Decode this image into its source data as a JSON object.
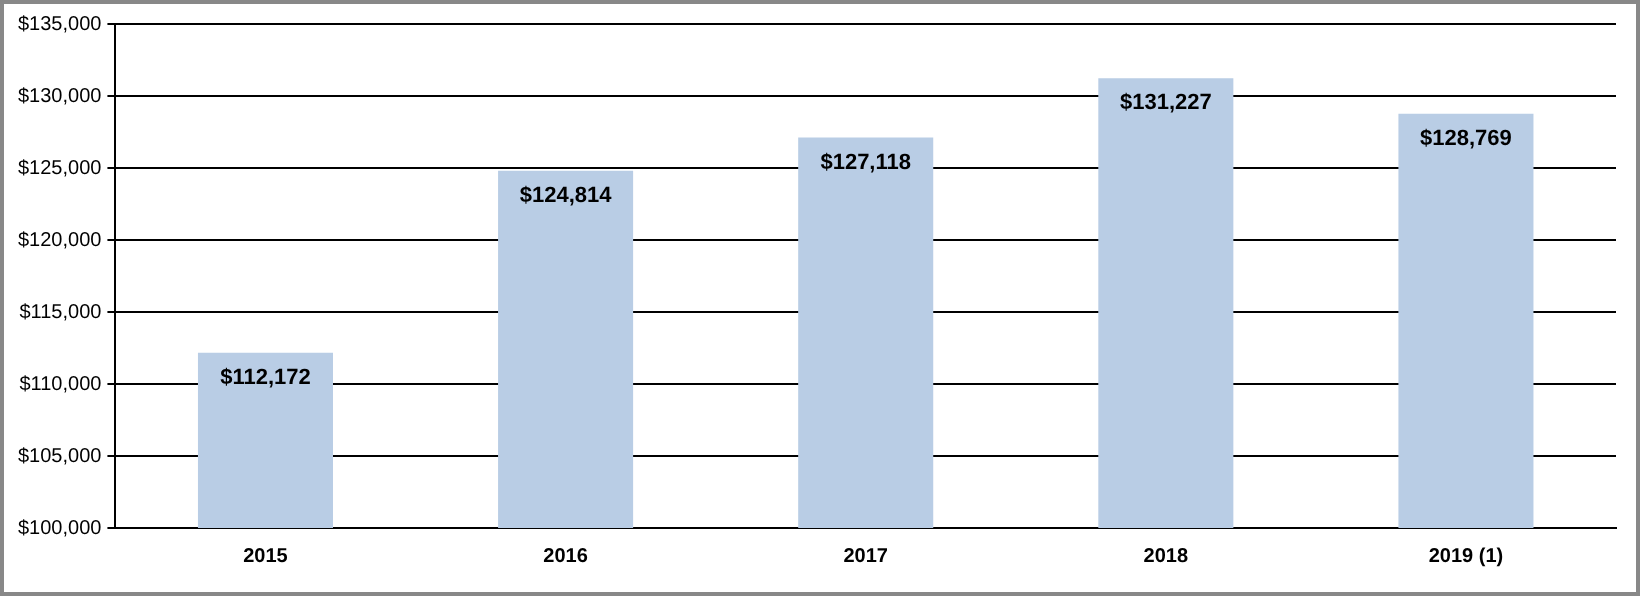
{
  "chart_data": {
    "type": "bar",
    "categories": [
      "2015",
      "2016",
      "2017",
      "2018",
      "2019 (1)"
    ],
    "values": [
      112172,
      124814,
      127118,
      131227,
      128769
    ],
    "value_labels": [
      "$112,172",
      "$124,814",
      "$127,118",
      "$131,227",
      "$128,769"
    ],
    "color": "#b9cde5",
    "ylim": [
      100000,
      135000
    ],
    "yticks": [
      {
        "value": 100000,
        "label": "$100,000"
      },
      {
        "value": 105000,
        "label": "$105,000"
      },
      {
        "value": 110000,
        "label": "$110,000"
      },
      {
        "value": 115000,
        "label": "$115,000"
      },
      {
        "value": 120000,
        "label": "$120,000"
      },
      {
        "value": 125000,
        "label": "$125,000"
      },
      {
        "value": 130000,
        "label": "$130,000"
      },
      {
        "value": 135000,
        "label": "$135,000"
      }
    ],
    "grid": "y",
    "legend": false
  }
}
